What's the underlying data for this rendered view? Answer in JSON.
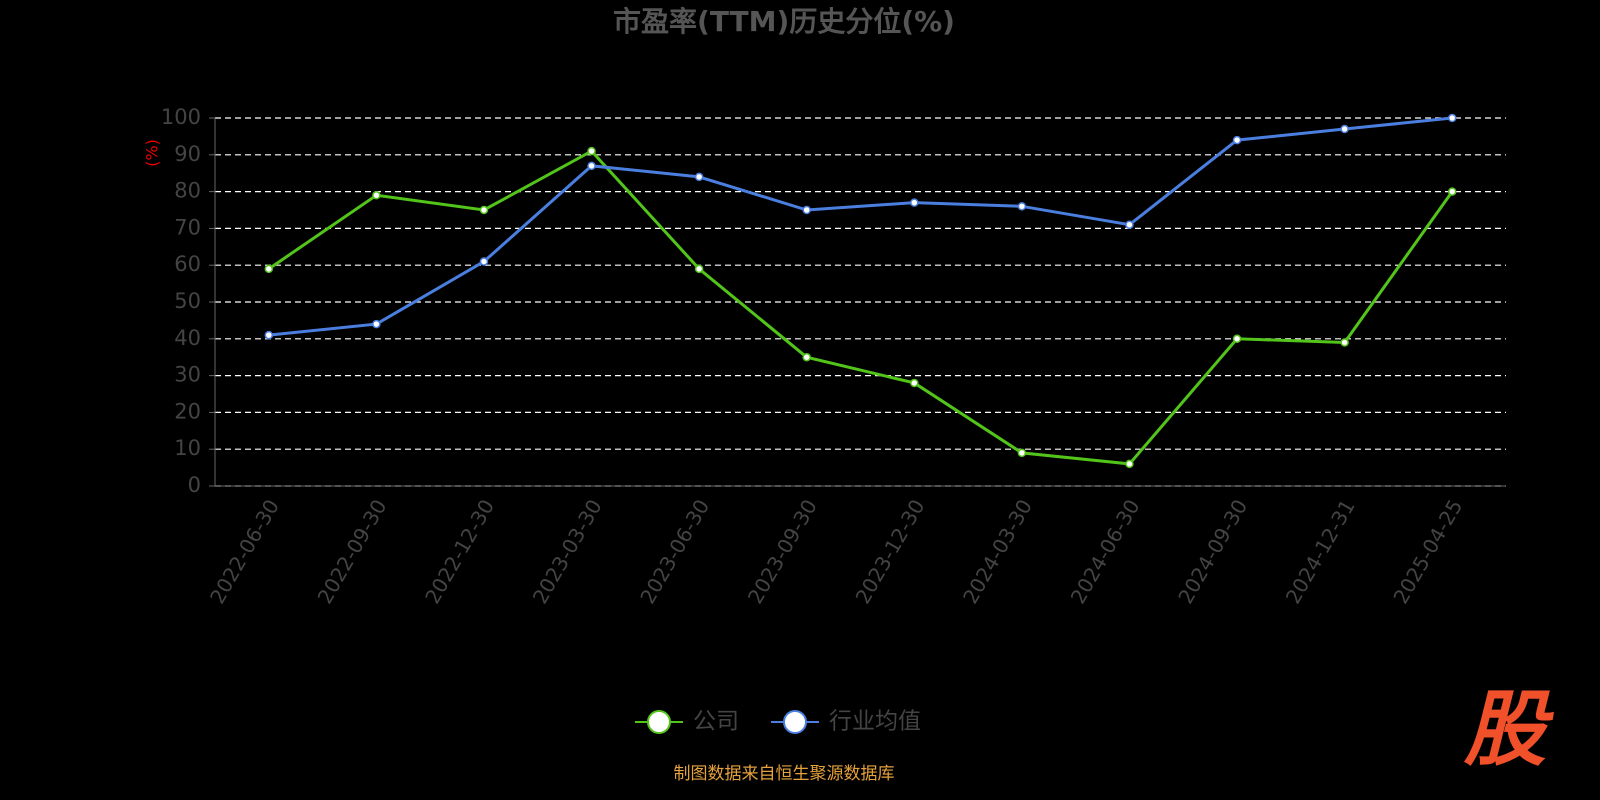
{
  "chart_data": {
    "type": "line",
    "title": "市盈率(TTM)历史分位(%)",
    "y_axis_label": "(%)",
    "categories": [
      "2022-06-30",
      "2022-09-30",
      "2022-12-30",
      "2023-03-30",
      "2023-06-30",
      "2023-09-30",
      "2023-12-30",
      "2024-03-30",
      "2024-06-30",
      "2024-09-30",
      "2024-12-31",
      "2025-04-25"
    ],
    "series": [
      {
        "name": "公司",
        "color": "#52c41a",
        "values": [
          59,
          79,
          75,
          91,
          59,
          35,
          28,
          9,
          6,
          40,
          39,
          80
        ]
      },
      {
        "name": "行业均值",
        "color": "#4a7fe0",
        "values": [
          41,
          44,
          61,
          87,
          84,
          75,
          77,
          76,
          71,
          94,
          97,
          100
        ]
      }
    ],
    "ylim": [
      0,
      100
    ],
    "yticks": [
      0,
      10,
      20,
      30,
      40,
      50,
      60,
      70,
      80,
      90,
      100
    ],
    "grid": true,
    "legend": "bottom",
    "source": "制图数据来自恒生聚源数据库",
    "logo": "股"
  }
}
